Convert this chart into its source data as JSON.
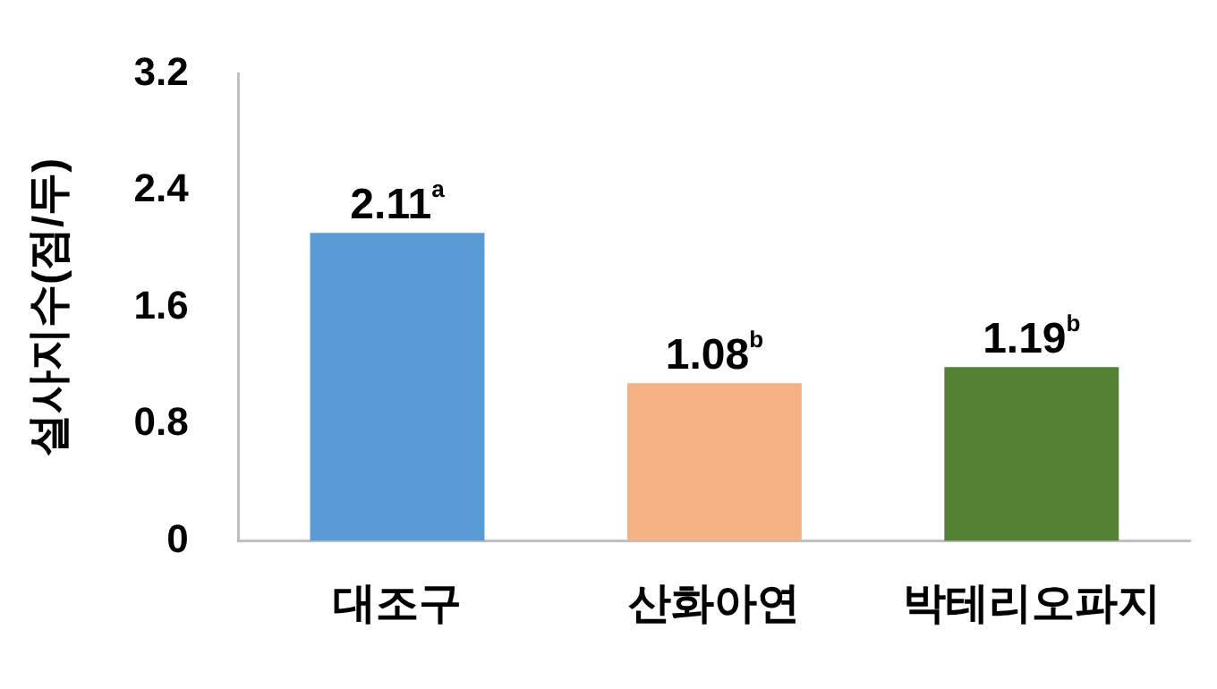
{
  "chart_data": {
    "type": "bar",
    "ylabel": "설사지수(점/두)",
    "categories": [
      "대조구",
      "산화아연",
      "박테리오파지"
    ],
    "values": [
      2.11,
      1.08,
      1.19
    ],
    "colors": [
      "#5b9bd5",
      "#f4b183",
      "#548235"
    ],
    "value_labels": [
      "2.11$^{a}$",
      "1.08$^{b}$",
      "1.19$^{b}$"
    ],
    "ylim": [
      0,
      3.2
    ],
    "yticks": [
      0,
      0.8,
      1.6,
      2.4,
      3.2
    ],
    "grid": false,
    "legend": false
  }
}
